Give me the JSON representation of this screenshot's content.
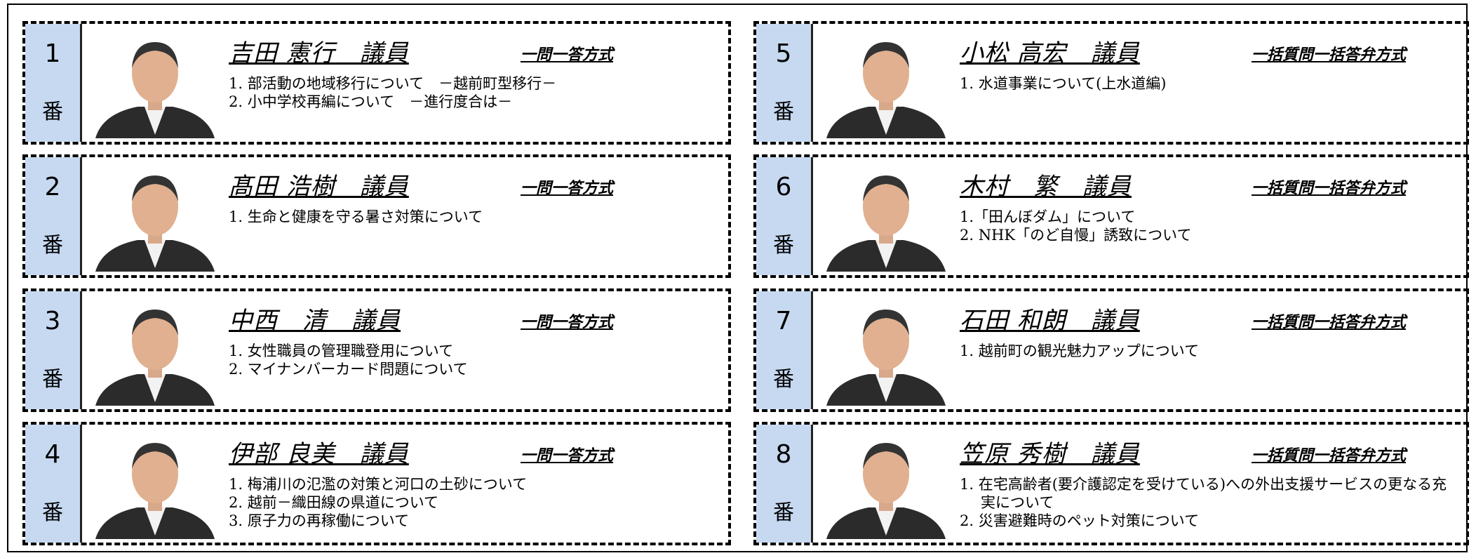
{
  "cards": [
    {
      "number": "1",
      "suffix": "番",
      "name": "吉田 憲行　議員",
      "format": "一問一答方式",
      "items": [
        "1. 部活動の地域移行について　－越前町型移行－",
        "2. 小中学校再編について　－進行度合は－"
      ]
    },
    {
      "number": "2",
      "suffix": "番",
      "name": "髙田 浩樹　議員",
      "format": "一問一答方式",
      "items": [
        "1. 生命と健康を守る暑さ対策について"
      ]
    },
    {
      "number": "3",
      "suffix": "番",
      "name": "中西　清　議員",
      "format": "一問一答方式",
      "items": [
        "1. 女性職員の管理職登用について",
        "2. マイナンバーカード問題について"
      ]
    },
    {
      "number": "4",
      "suffix": "番",
      "name": "伊部 良美　議員",
      "format": "一問一答方式",
      "items": [
        "1. 梅浦川の氾濫の対策と河口の土砂について",
        "2. 越前－織田線の県道について",
        "3. 原子力の再稼働について"
      ]
    },
    {
      "number": "5",
      "suffix": "番",
      "name": "小松 高宏　議員",
      "format": "一括質問一括答弁方式",
      "items": [
        "1. 水道事業について(上水道編)"
      ]
    },
    {
      "number": "6",
      "suffix": "番",
      "name": "木村　繁　議員",
      "format": "一括質問一括答弁方式",
      "items": [
        "1.「田んぼダム」について",
        "2. NHK「のど自慢」誘致について"
      ]
    },
    {
      "number": "7",
      "suffix": "番",
      "name": "石田 和朗　議員",
      "format": "一括質問一括答弁方式",
      "items": [
        "1. 越前町の観光魅力アップについて"
      ]
    },
    {
      "number": "8",
      "suffix": "番",
      "name": "笠原 秀樹　議員",
      "format": "一括質問一括答弁方式",
      "items": [
        "1. 在宅高齢者(要介護認定を受けている)への外出支援サービスの更なる充実について",
        "2. 災害避難時のペット対策について"
      ]
    }
  ]
}
